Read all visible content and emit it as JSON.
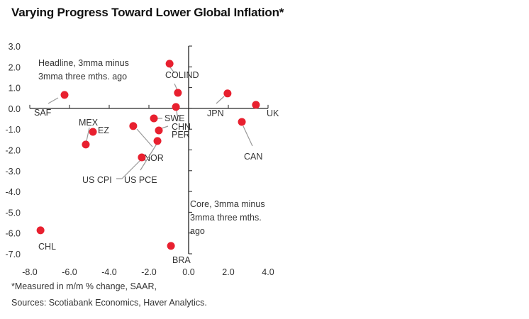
{
  "title": "Varying Progress Toward Lower Global Inflation*",
  "footnotes": [
    "*Measured in m/m % change, SAAR,",
    "Sources: Scotiabank Economics, Haver Analytics."
  ],
  "chart_data": {
    "type": "scatter",
    "title": "Varying Progress Toward Lower Global Inflation*",
    "xlabel": "Core, 3mma minus 3mma three mths. ago",
    "ylabel": "Headline, 3mma minus 3mma three mths. ago",
    "xlabel_lines": [
      "Core, 3mma minus",
      "3mma three mths.",
      "ago"
    ],
    "ylabel_lines": [
      "Headline, 3mma minus",
      "3mma three mths. ago"
    ],
    "xlim": [
      -8,
      4
    ],
    "ylim": [
      -7,
      3
    ],
    "xticks": [
      "-8.0",
      "-6.0",
      "-4.0",
      "-2.0",
      "0.0",
      "2.0",
      "4.0"
    ],
    "yticks": [
      "3.0",
      "2.0",
      "1.0",
      "0.0",
      "-1.0",
      "-2.0",
      "-3.0",
      "-4.0",
      "-5.0",
      "-6.0",
      "-7.0"
    ],
    "grid": false,
    "marker_color": "#e8202f",
    "points": [
      {
        "label": "SAF",
        "x": -6.25,
        "y": 0.65
      },
      {
        "label": "COL",
        "x": -0.96,
        "y": 2.15
      },
      {
        "label": "IND",
        "x": -0.54,
        "y": 0.75
      },
      {
        "label": "PER",
        "x": -0.64,
        "y": 0.07
      },
      {
        "label": "JPN",
        "x": 1.96,
        "y": 0.72
      },
      {
        "label": "UK",
        "x": 3.39,
        "y": 0.17
      },
      {
        "label": "CAN",
        "x": 2.68,
        "y": -0.65
      },
      {
        "label": "SWE",
        "x": -1.75,
        "y": -0.48
      },
      {
        "label": "CHN",
        "x": -1.5,
        "y": -1.06
      },
      {
        "label": "MEX",
        "x": -5.18,
        "y": -1.74
      },
      {
        "label": "EZ",
        "x": -4.82,
        "y": -1.13
      },
      {
        "label": "NOR",
        "x": -2.79,
        "y": -0.85
      },
      {
        "label": "US PCE",
        "x": -1.57,
        "y": -1.57
      },
      {
        "label": "US CPI",
        "x": -2.36,
        "y": -2.36
      },
      {
        "label": "CHL",
        "x": -7.46,
        "y": -5.87
      },
      {
        "label": "BRA",
        "x": -0.89,
        "y": -6.62
      }
    ]
  }
}
